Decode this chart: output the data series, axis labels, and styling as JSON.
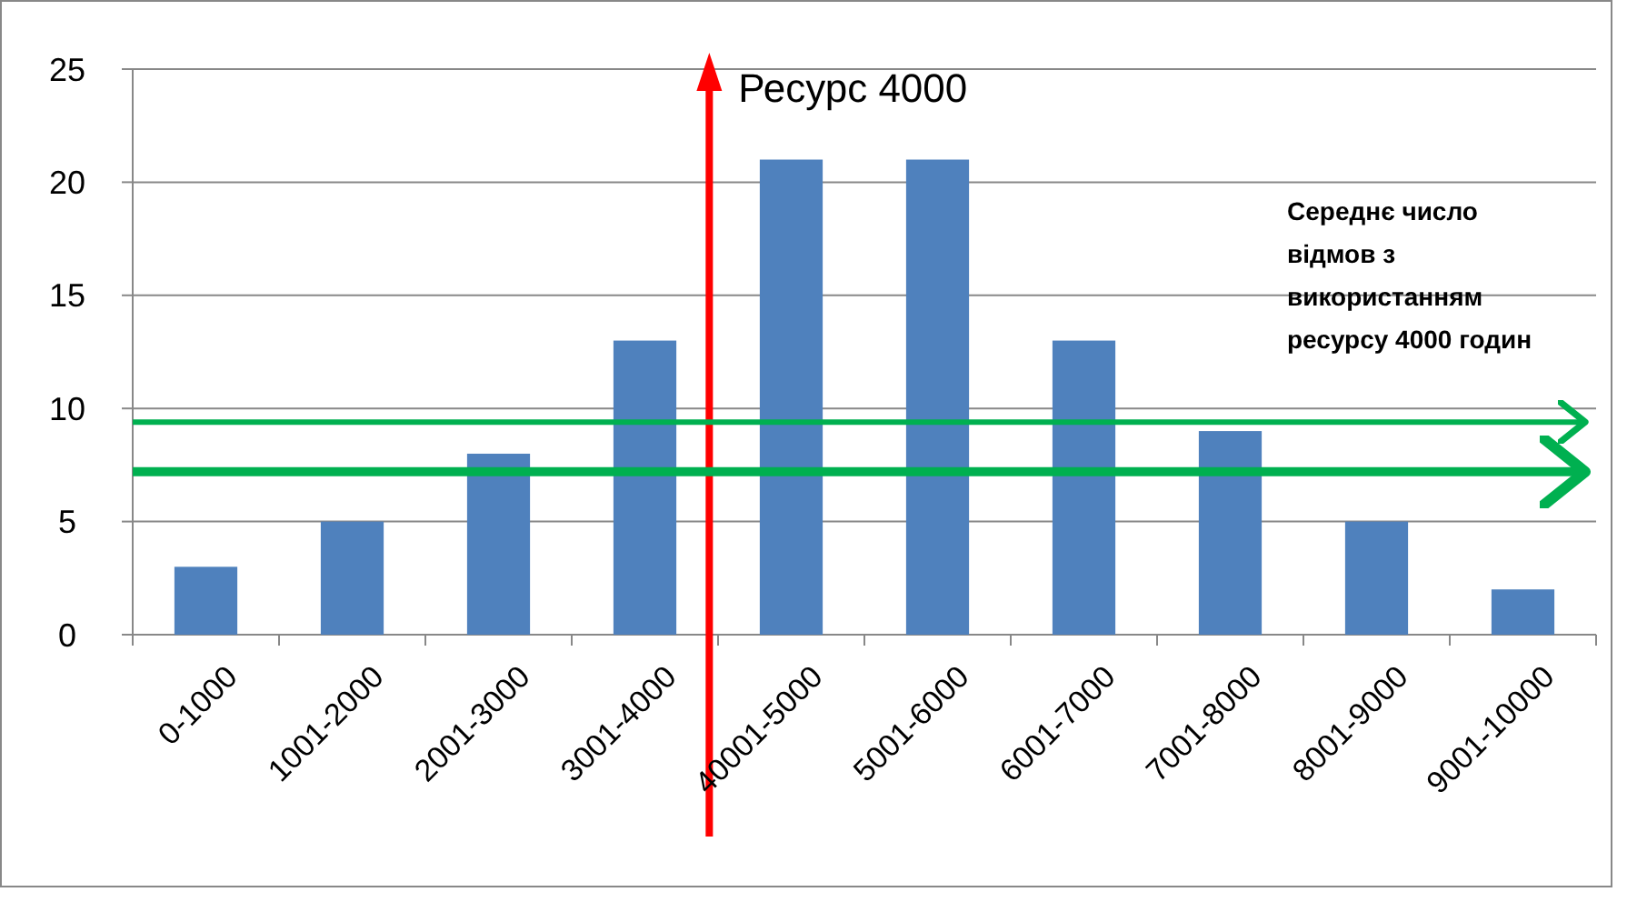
{
  "chart_data": {
    "type": "bar",
    "categories": [
      "0-1000",
      "1001-2000",
      "2001-3000",
      "3001-4000",
      "40001-5000",
      "5001-6000",
      "6001-7000",
      "7001-8000",
      "8001-9000",
      "9001-10000"
    ],
    "values": [
      3,
      5,
      8,
      13,
      21,
      21,
      13,
      9,
      5,
      2
    ],
    "color": "#4f81bd",
    "ylim": [
      0,
      25
    ],
    "yticks": [
      0,
      5,
      10,
      15,
      20,
      25
    ],
    "grid": "y",
    "ref_lines": [
      {
        "axis": "y",
        "value": 9.4,
        "color": "#00b050"
      },
      {
        "axis": "y",
        "value": 7.2,
        "color": "#00b050"
      }
    ],
    "annotations": [
      "Ресурс 4000",
      "Середнє число відмов з використанням ресурсу 4000 годин"
    ]
  }
}
